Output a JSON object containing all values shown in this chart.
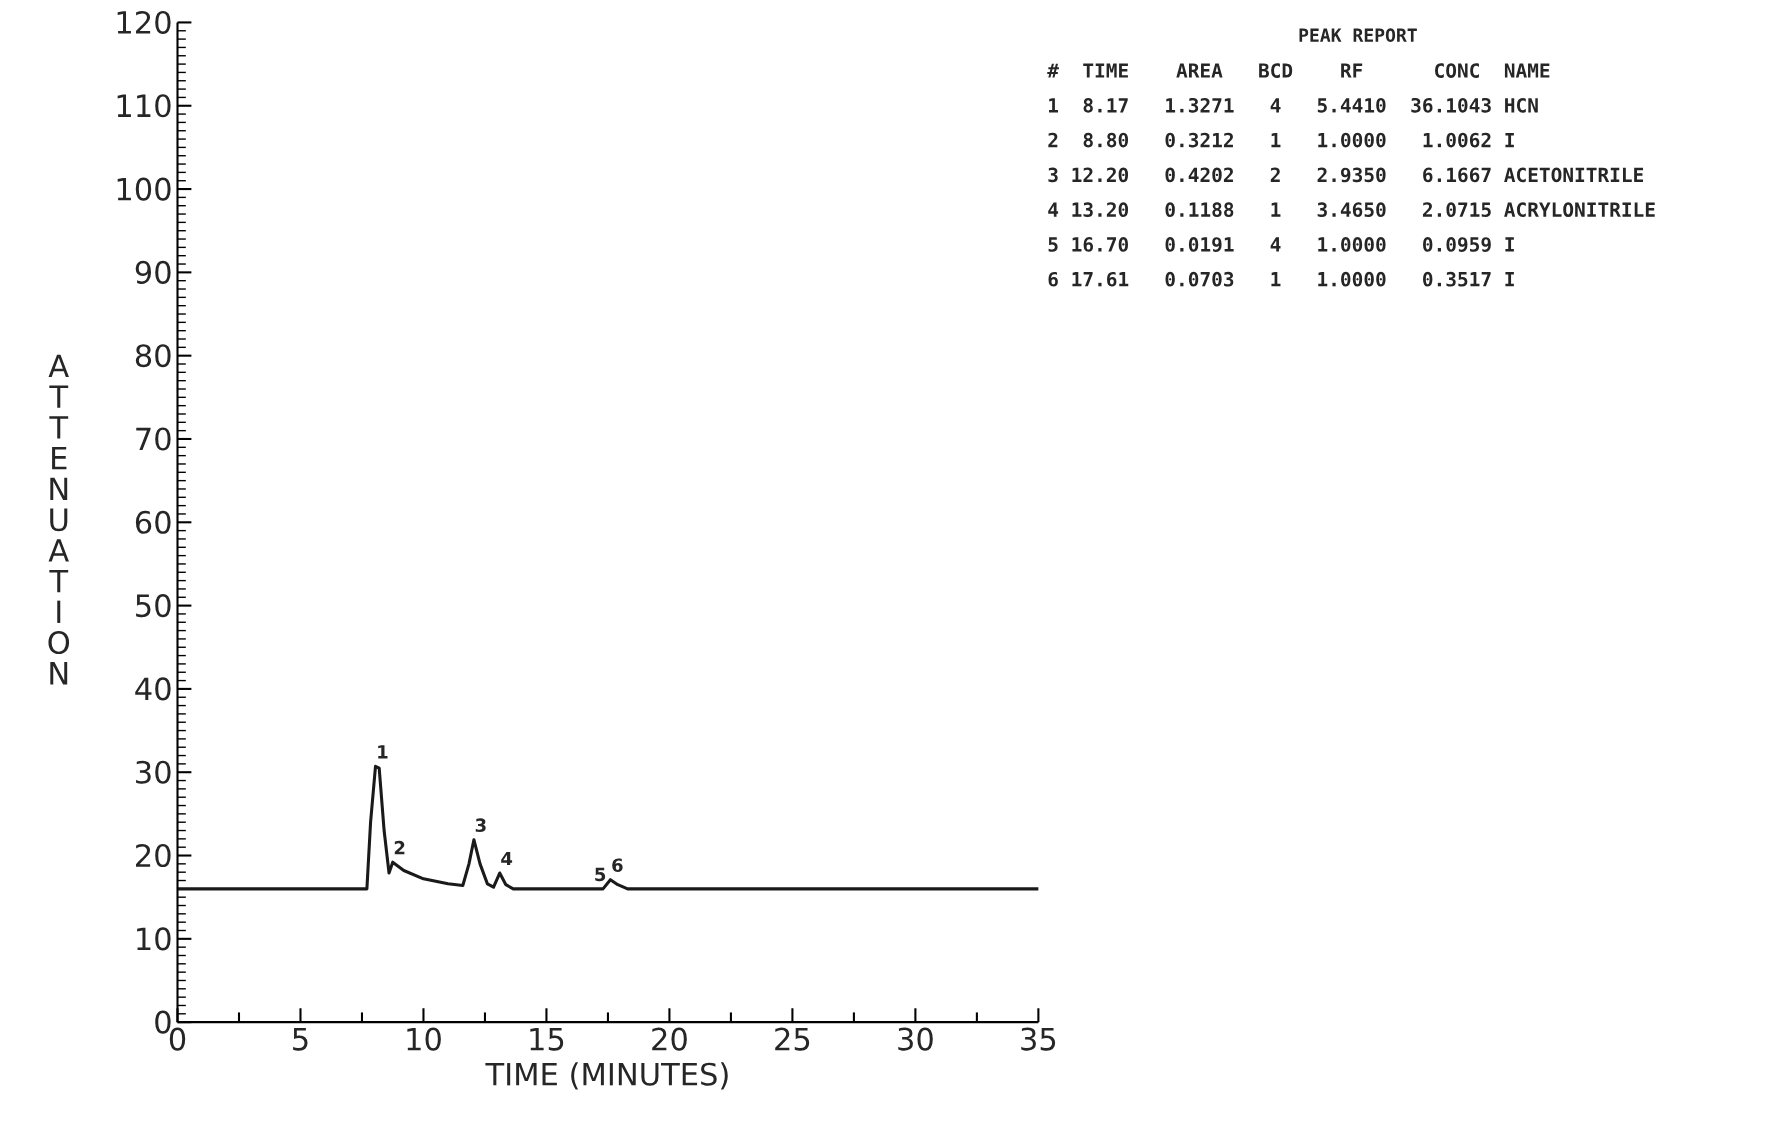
{
  "chart_data": {
    "type": "line",
    "xlabel": "TIME (MINUTES)",
    "ylabel": "ATTENUATION",
    "x": [
      0,
      7.7,
      7.85,
      8.05,
      8.2,
      8.4,
      8.6,
      8.75,
      9.2,
      10.0,
      11.0,
      11.6,
      11.85,
      12.05,
      12.3,
      12.6,
      12.85,
      13.1,
      13.35,
      13.65,
      17.3,
      17.6,
      17.9,
      18.3,
      35
    ],
    "series": [
      {
        "color": "#1a1a1a",
        "values": [
          16,
          16,
          24,
          30.7,
          30.5,
          23,
          17.9,
          19.2,
          18.2,
          17.2,
          16.6,
          16.4,
          19,
          21.9,
          19,
          16.6,
          16.2,
          17.9,
          16.5,
          16.0,
          16.0,
          17.1,
          16.5,
          16.0,
          16.0
        ]
      }
    ],
    "xlim": [
      0,
      35
    ],
    "ylim": [
      0,
      120
    ],
    "xticks": [
      0,
      {
        "value": 2.5,
        "label": null
      },
      5,
      {
        "value": 7.5,
        "label": null
      },
      10,
      {
        "value": 12.5,
        "label": null
      },
      15,
      {
        "value": 17.5,
        "label": null
      },
      20,
      {
        "value": 22.5,
        "label": null
      },
      25,
      {
        "value": 27.5,
        "label": null
      },
      30,
      {
        "value": 32.5,
        "label": null
      },
      35
    ],
    "yticks": [
      0,
      10,
      20,
      30,
      40,
      50,
      60,
      70,
      80,
      90,
      100,
      110,
      120
    ],
    "grid": false,
    "legend": false,
    "marker": "none",
    "line_style": "solid",
    "annotations": [
      {
        "text": "1",
        "x": 8.05,
        "y": 30.7
      },
      {
        "text": "2",
        "x": 8.75,
        "y": 19.2
      },
      {
        "text": "3",
        "x": 12.05,
        "y": 21.9
      },
      {
        "text": "4",
        "x": 13.1,
        "y": 17.9
      },
      {
        "text": "5",
        "x": 16.9,
        "y": 16.0
      },
      {
        "text": "6",
        "x": 17.6,
        "y": 17.1
      },
      "PEAK REPORT",
      "#  TIME    AREA   BCD    RF      CONC  NAME",
      "1  8.17   1.3271   4   5.4410  36.1043 HCN",
      "2  8.80   0.3212   1   1.0000   1.0062 I",
      "3 12.20   0.4202   2   2.9350   6.1667 ACETONITRILE",
      "4 13.20   0.1188   1   3.4650   2.0715 ACRYLONITRILE",
      "5 16.70   0.0191   4   1.0000   0.0959 I",
      "6 17.61   0.0703   1   1.0000   0.3517 I"
    ]
  }
}
